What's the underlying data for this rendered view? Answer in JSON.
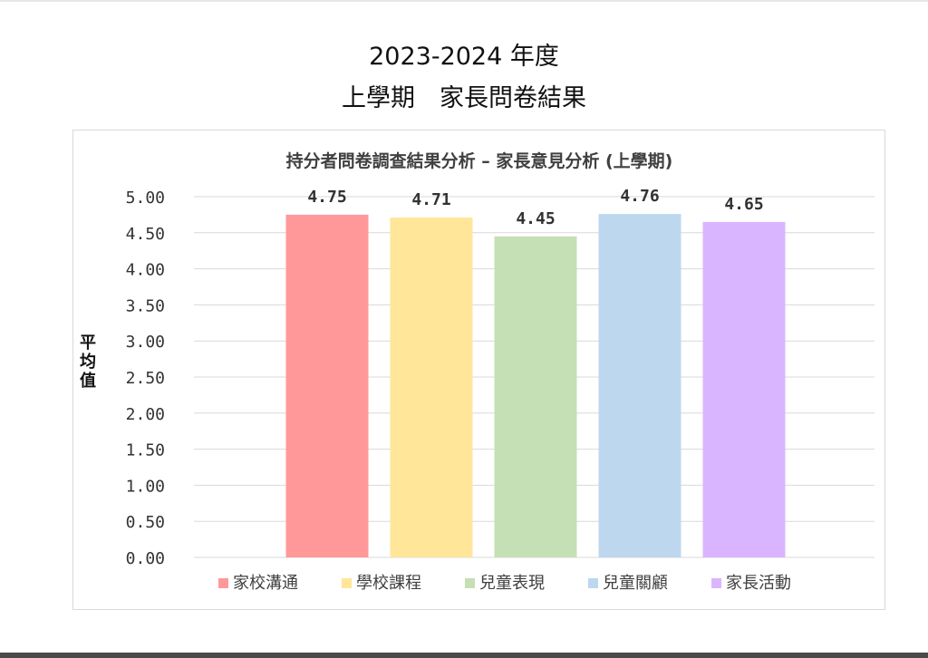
{
  "page": {
    "heading_line_1": "2023-2024 年度",
    "heading_line_2": "上學期　家長問卷結果"
  },
  "chart_data": {
    "type": "bar",
    "title": "持分者問卷調查結果分析 – 家長意見分析 (上學期)",
    "ylabel": "平均值",
    "xlabel": "",
    "ylim": [
      0,
      5
    ],
    "yticks": [
      "0.00",
      "0.50",
      "1.00",
      "1.50",
      "2.00",
      "2.50",
      "3.00",
      "3.50",
      "4.00",
      "4.50",
      "5.00"
    ],
    "grid": true,
    "legend_position": "bottom",
    "series": [
      {
        "name": "家校溝通",
        "value": 4.75,
        "label": "4.75",
        "color": "#ff9999"
      },
      {
        "name": "學校課程",
        "value": 4.71,
        "label": "4.71",
        "color": "#ffe699"
      },
      {
        "name": "兒童表現",
        "value": 4.45,
        "label": "4.45",
        "color": "#c5e0b4"
      },
      {
        "name": "兒童關顧",
        "value": 4.76,
        "label": "4.76",
        "color": "#bdd7ee"
      },
      {
        "name": "家長活動",
        "value": 4.65,
        "label": "4.65",
        "color": "#dab5ff"
      }
    ],
    "axis_label_color": "#333333",
    "gridline_color": "#d9d9d9"
  }
}
